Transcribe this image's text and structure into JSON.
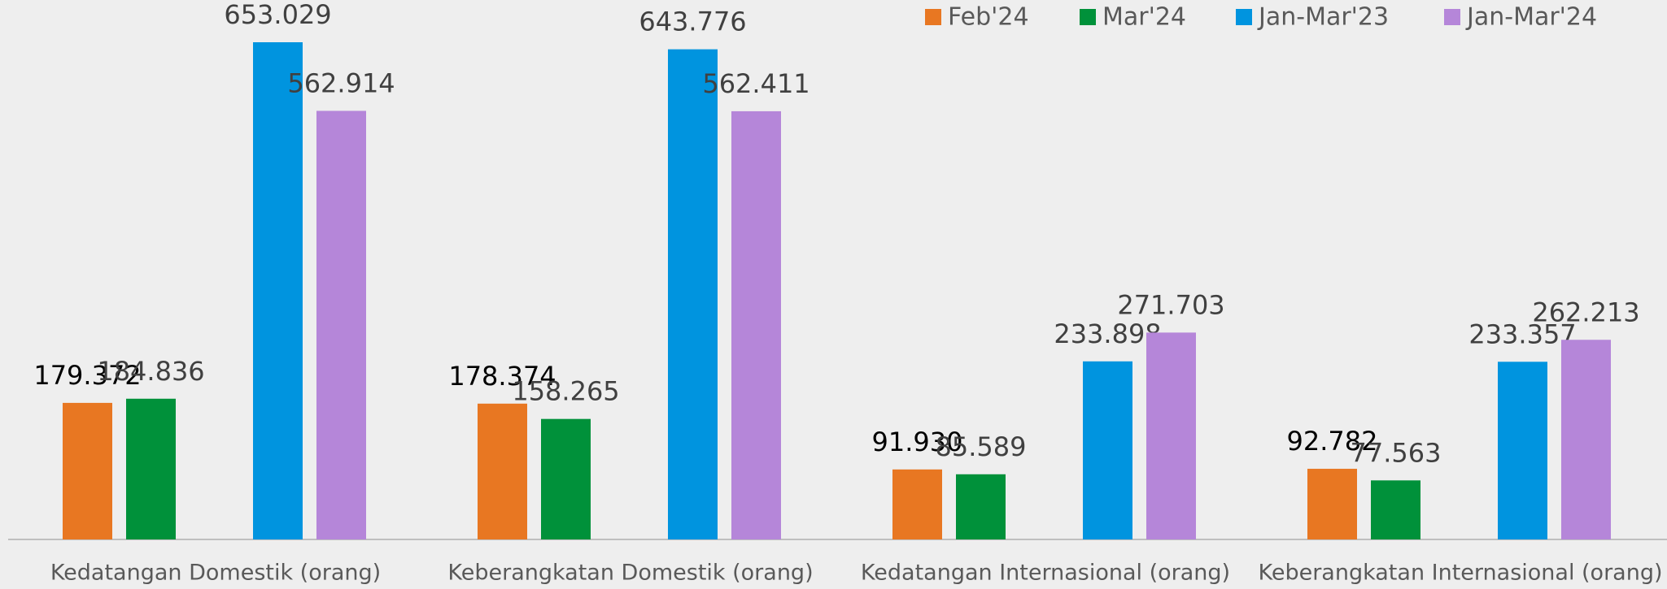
{
  "chart_data": {
    "type": "bar",
    "categories": [
      "Kedatangan Domestik (orang)",
      "Keberangkatan Domestik (orang)",
      "Kedatangan Internasional (orang)",
      "Keberangkatan Internasional (orang)"
    ],
    "series": [
      {
        "name": "Feb'24",
        "color": "#e87722",
        "values": [
          179372,
          178374,
          91930,
          92782
        ],
        "value_labels": [
          "179.372",
          "178.374",
          "91.930",
          "92.782"
        ]
      },
      {
        "name": "Mar'24",
        "color": "#00913a",
        "values": [
          184836,
          158265,
          85589,
          77563
        ],
        "value_labels": [
          "184.836",
          "158.265",
          "85.589",
          "77.563"
        ]
      },
      {
        "name": "Jan-Mar'23",
        "color": "#0094df",
        "values": [
          653029,
          643776,
          233898,
          233357
        ],
        "value_labels": [
          "653.029",
          "643.776",
          "233.898",
          "233.357"
        ]
      },
      {
        "name": "Jan-Mar'24",
        "color": "#b586d9",
        "values": [
          562914,
          562411,
          271703,
          262213
        ],
        "value_labels": [
          "562.914",
          "562.411",
          "271.703",
          "262.213"
        ]
      }
    ],
    "legend": "top-right"
  }
}
